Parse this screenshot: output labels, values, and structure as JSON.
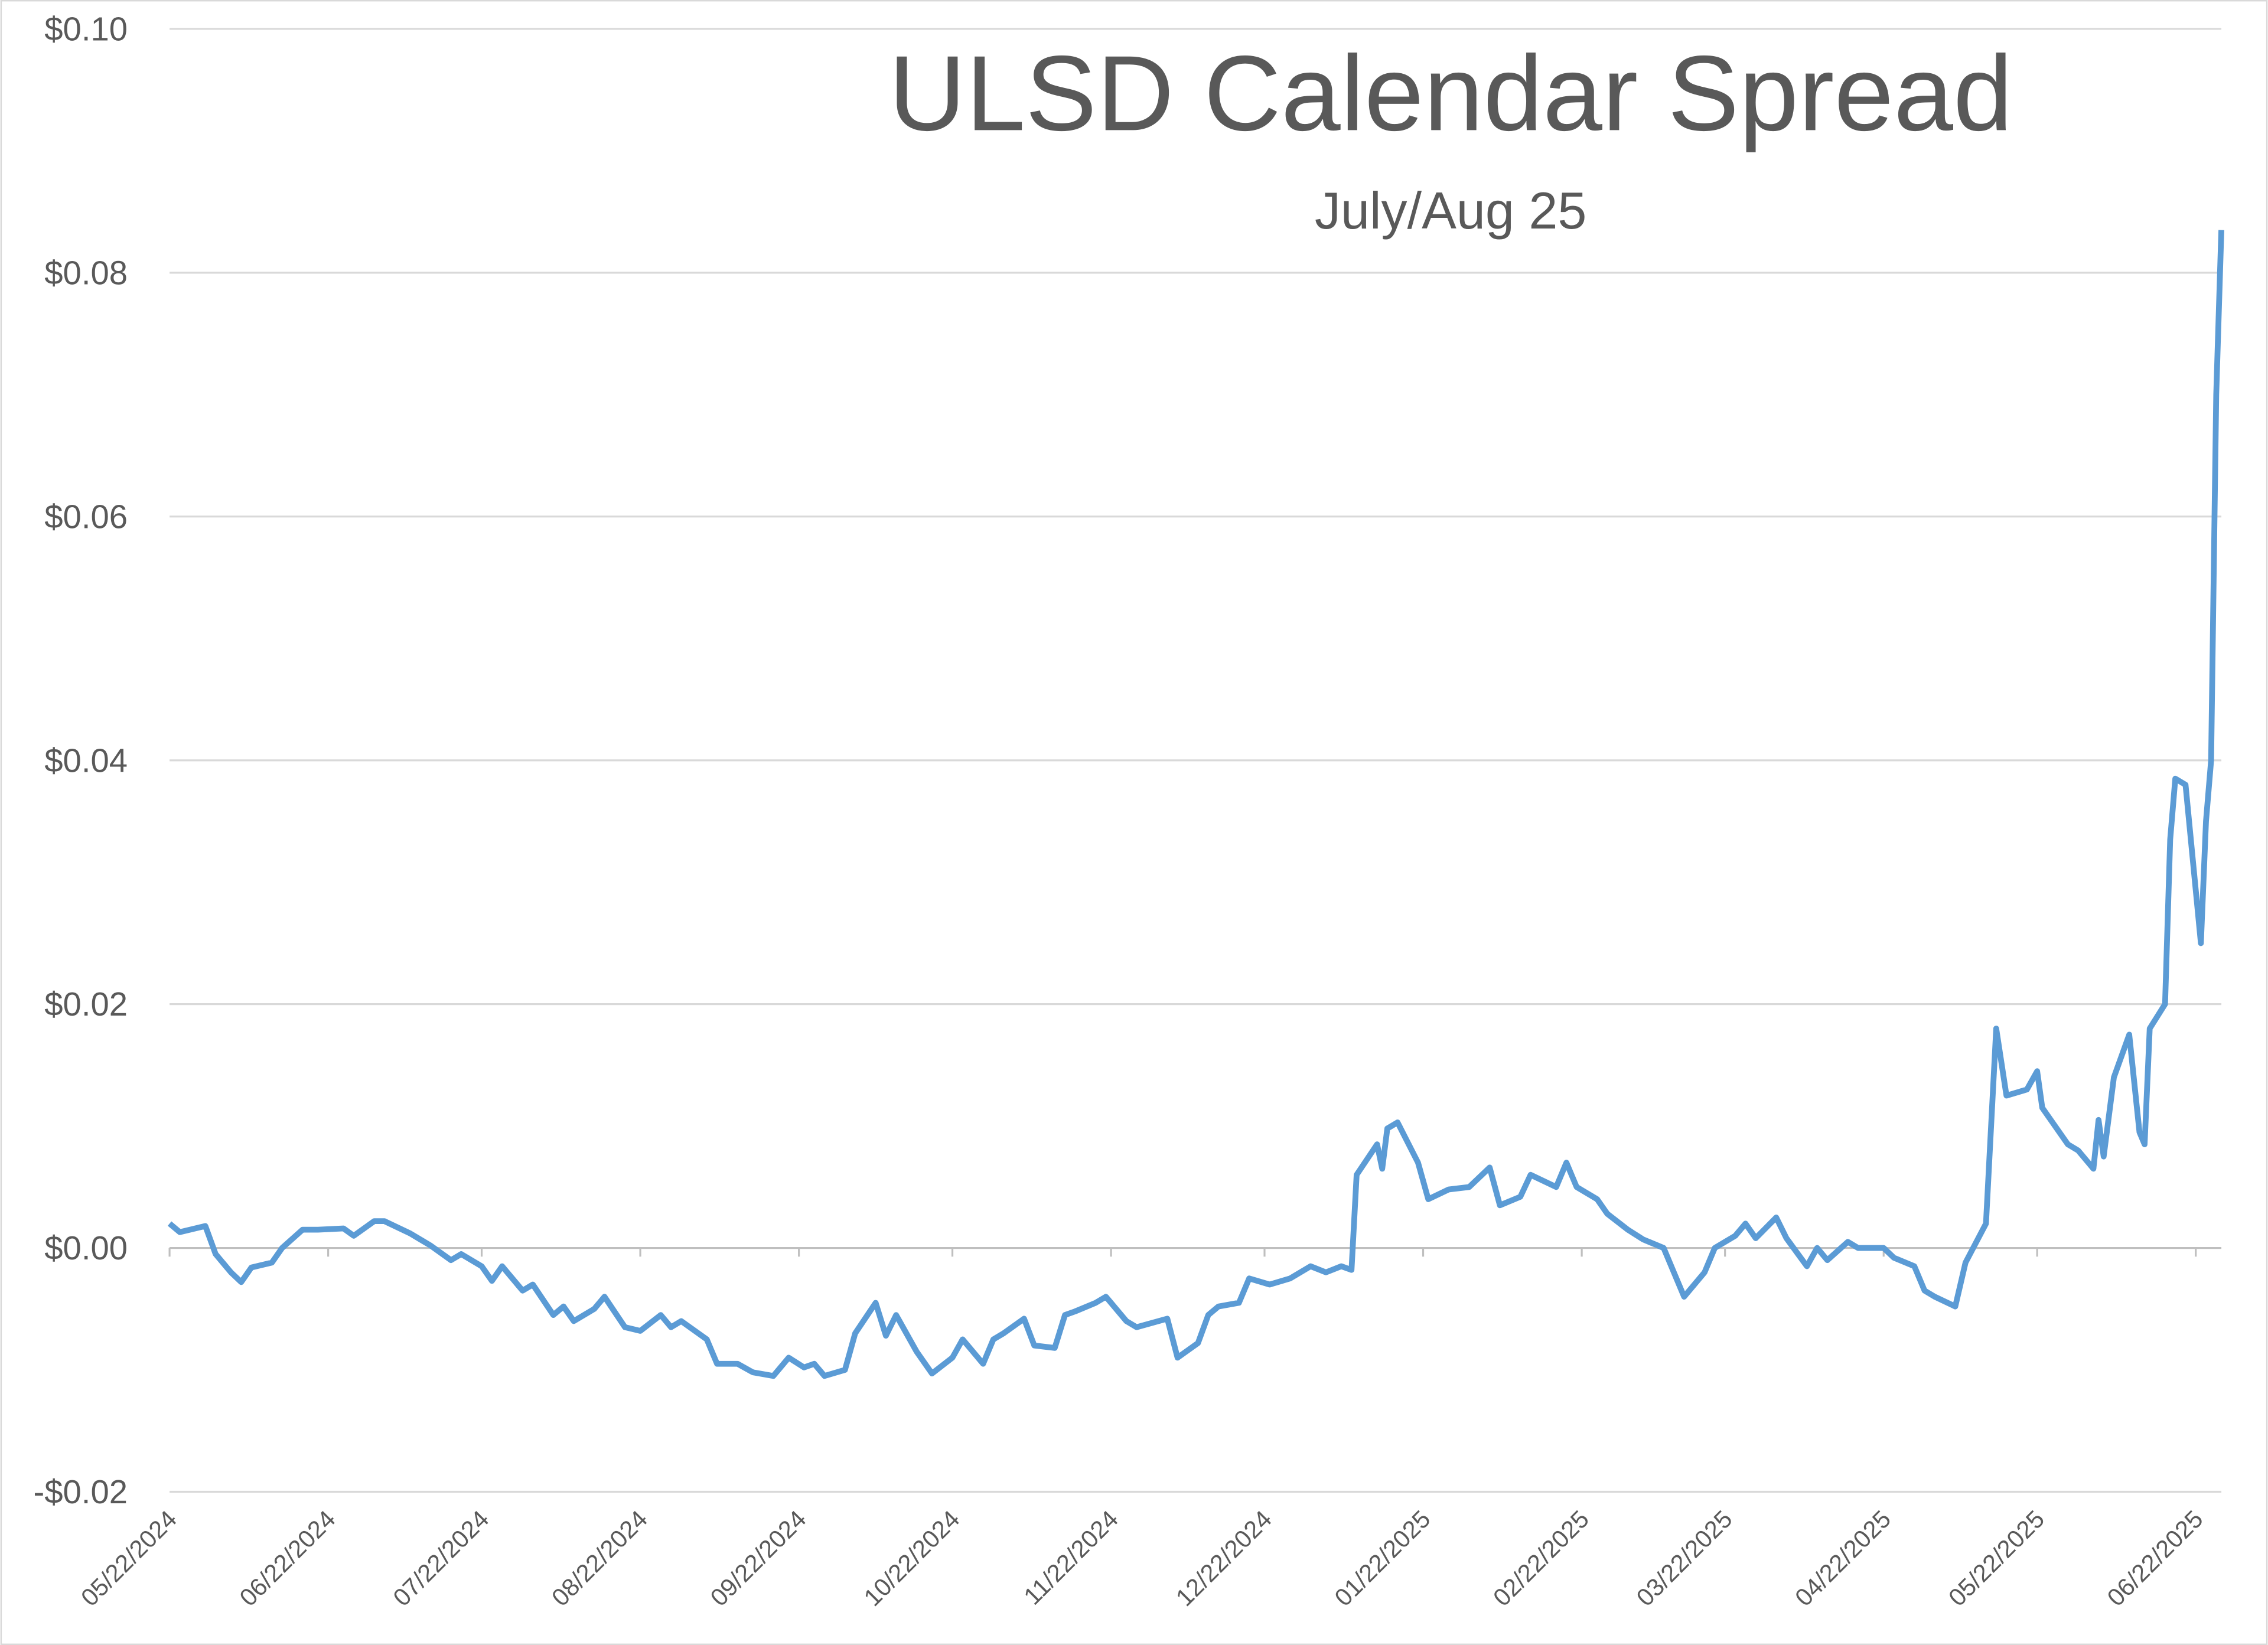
{
  "chart_data": {
    "type": "line",
    "title": "ULSD Calendar Spread",
    "subtitle": "July/Aug 25",
    "ylim": [
      -0.02,
      0.1
    ],
    "yticks": [
      {
        "value": -0.02,
        "label": "-$0.02"
      },
      {
        "value": 0,
        "label": "$0.00"
      },
      {
        "value": 0.02,
        "label": "$0.02"
      },
      {
        "value": 0.04,
        "label": "$0.04"
      },
      {
        "value": 0.06,
        "label": "$0.06"
      },
      {
        "value": 0.08,
        "label": "$0.08"
      },
      {
        "value": 0.1,
        "label": "$0.10"
      }
    ],
    "xlim": [
      "05/22/2024",
      "06/27/2025"
    ],
    "xticks": [
      "05/22/2024",
      "06/22/2024",
      "07/22/2024",
      "08/22/2024",
      "09/22/2024",
      "10/22/2024",
      "11/22/2024",
      "12/22/2024",
      "01/22/2025",
      "02/22/2025",
      "03/22/2025",
      "04/22/2025",
      "05/22/2025",
      "06/22/2025"
    ],
    "grid": true,
    "x": [
      "05/22/2024",
      "05/24/2024",
      "05/29/2024",
      "05/31/2024",
      "06/03/2024",
      "06/05/2024",
      "06/07/2024",
      "06/11/2024",
      "06/13/2024",
      "06/17/2024",
      "06/20/2024",
      "06/25/2024",
      "06/27/2024",
      "07/01/2024",
      "07/03/2024",
      "07/08/2024",
      "07/10/2024",
      "07/12/2024",
      "07/16/2024",
      "07/18/2024",
      "07/22/2024",
      "07/24/2024",
      "07/26/2024",
      "07/30/2024",
      "08/01/2024",
      "08/05/2024",
      "08/07/2024",
      "08/09/2024",
      "08/13/2024",
      "08/15/2024",
      "08/19/2024",
      "08/22/2024",
      "08/26/2024",
      "08/28/2024",
      "08/30/2024",
      "09/04/2024",
      "09/06/2024",
      "09/10/2024",
      "09/13/2024",
      "09/17/2024",
      "09/20/2024",
      "09/23/2024",
      "09/25/2024",
      "09/27/2024",
      "10/01/2024",
      "10/03/2024",
      "10/07/2024",
      "10/09/2024",
      "10/11/2024",
      "10/15/2024",
      "10/18/2024",
      "10/22/2024",
      "10/24/2024",
      "10/28/2024",
      "10/30/2024",
      "11/01/2024",
      "11/05/2024",
      "11/07/2024",
      "11/11/2024",
      "11/13/2024",
      "11/15/2024",
      "11/19/2024",
      "11/21/2024",
      "11/25/2024",
      "11/27/2024",
      "12/03/2024",
      "12/05/2024",
      "12/09/2024",
      "12/11/2024",
      "12/13/2024",
      "12/17/2024",
      "12/19/2024",
      "12/23/2024",
      "12/27/2024",
      "12/31/2024",
      "01/03/2025",
      "01/06/2025",
      "01/08/2025",
      "01/09/2025",
      "01/13/2025",
      "01/14/2025",
      "01/15/2025",
      "01/17/2025",
      "01/21/2025",
      "01/23/2025",
      "01/27/2025",
      "01/31/2025",
      "02/04/2025",
      "02/06/2025",
      "02/10/2025",
      "02/12/2025",
      "02/17/2025",
      "02/19/2025",
      "02/21/2025",
      "02/25/2025",
      "02/27/2025",
      "03/03/2025",
      "03/06/2025",
      "03/10/2025",
      "03/12/2025",
      "03/14/2025",
      "03/18/2025",
      "03/20/2025",
      "03/24/2025",
      "03/26/2025",
      "03/28/2025",
      "04/01/2025",
      "04/03/2025",
      "04/07/2025",
      "04/09/2025",
      "04/11/2025",
      "04/15/2025",
      "04/17/2025",
      "04/22/2025",
      "04/24/2025",
      "04/28/2025",
      "04/30/2025",
      "05/02/2025",
      "05/06/2025",
      "05/08/2025",
      "05/12/2025",
      "05/14/2025",
      "05/16/2025",
      "05/20/2025",
      "05/22/2025",
      "05/23/2025",
      "05/28/2025",
      "05/30/2025",
      "06/02/2025",
      "06/03/2025",
      "06/04/2025",
      "06/06/2025",
      "06/09/2025",
      "06/11/2025",
      "06/12/2025",
      "06/13/2025",
      "06/16/2025",
      "06/17/2025",
      "06/18/2025",
      "06/20/2025",
      "06/23/2025",
      "06/24/2025",
      "06/25/2025",
      "06/26/2025",
      "06/27/2025"
    ],
    "series": [
      {
        "color": "#5b9bd5",
        "values": [
          0.002,
          0.0013,
          0.0018,
          -0.0005,
          -0.002,
          -0.0028,
          -0.0016,
          -0.0012,
          0.0,
          0.0015,
          0.0015,
          0.0016,
          0.001,
          0.0022,
          0.0022,
          0.0012,
          0.0007,
          0.0002,
          -0.001,
          -0.0005,
          -0.0015,
          -0.0027,
          -0.0015,
          -0.0035,
          -0.003,
          -0.0055,
          -0.0048,
          -0.006,
          -0.005,
          -0.004,
          -0.0065,
          -0.0068,
          -0.0055,
          -0.0065,
          -0.006,
          -0.0075,
          -0.0095,
          -0.0095,
          -0.0102,
          -0.0105,
          -0.009,
          -0.0098,
          -0.0095,
          -0.0105,
          -0.01,
          -0.007,
          -0.0045,
          -0.0072,
          -0.0055,
          -0.0085,
          -0.0103,
          -0.009,
          -0.0075,
          -0.0095,
          -0.0075,
          -0.007,
          -0.0058,
          -0.008,
          -0.0082,
          -0.0055,
          -0.0052,
          -0.0045,
          -0.004,
          -0.006,
          -0.0065,
          -0.0058,
          -0.009,
          -0.0078,
          -0.0055,
          -0.0048,
          -0.0045,
          -0.0025,
          -0.003,
          -0.0025,
          -0.0015,
          -0.002,
          -0.0015,
          -0.0018,
          0.006,
          0.0085,
          0.0065,
          0.0098,
          0.0103,
          0.007,
          0.004,
          0.0048,
          0.005,
          0.0066,
          0.0035,
          0.0042,
          0.006,
          0.005,
          0.007,
          0.005,
          0.004,
          0.0028,
          0.0015,
          0.0007,
          0.0,
          -0.002,
          -0.004,
          -0.002,
          0.0,
          0.001,
          0.002,
          0.0008,
          0.0025,
          0.0008,
          -0.0015,
          0.0,
          -0.001,
          0.0005,
          0.0,
          0.0,
          -0.0008,
          -0.0015,
          -0.0035,
          -0.004,
          -0.0048,
          -0.0012,
          0.002,
          0.018,
          0.0125,
          0.013,
          0.0145,
          0.0115,
          0.0085,
          0.008,
          0.0065,
          0.0105,
          0.0075,
          0.014,
          0.0175,
          0.0095,
          0.0085,
          0.018,
          0.02,
          0.0335,
          0.0385,
          0.038,
          0.025,
          0.035,
          0.04,
          0.07,
          0.0835
        ]
      }
    ]
  }
}
